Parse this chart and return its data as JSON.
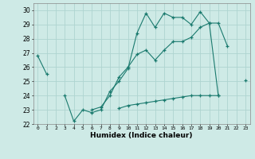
{
  "xlabel": "Humidex (Indice chaleur)",
  "xlim": [
    -0.5,
    23.5
  ],
  "ylim": [
    22,
    30.5
  ],
  "yticks": [
    22,
    23,
    24,
    25,
    26,
    27,
    28,
    29,
    30
  ],
  "xticks": [
    0,
    1,
    2,
    3,
    4,
    5,
    6,
    7,
    8,
    9,
    10,
    11,
    12,
    13,
    14,
    15,
    16,
    17,
    18,
    19,
    20,
    21,
    22,
    23
  ],
  "bg_color": "#ceeae6",
  "grid_color": "#aed4d0",
  "line_color": "#1a7a6e",
  "line1_y": [
    26.8,
    25.5,
    null,
    24.0,
    22.2,
    23.0,
    22.8,
    23.0,
    24.3,
    25.0,
    25.9,
    28.4,
    29.8,
    28.8,
    29.8,
    29.5,
    29.5,
    29.0,
    29.9,
    29.1,
    29.1,
    27.5,
    null,
    25.1
  ],
  "line2_y": [
    null,
    null,
    null,
    null,
    null,
    null,
    23.0,
    23.2,
    24.0,
    25.3,
    26.0,
    26.9,
    27.2,
    26.5,
    27.2,
    27.8,
    27.8,
    28.1,
    28.8,
    29.1,
    24.0,
    null,
    null,
    null
  ],
  "line3_y": [
    null,
    null,
    null,
    null,
    null,
    null,
    null,
    null,
    null,
    23.1,
    23.3,
    23.4,
    23.5,
    23.6,
    23.7,
    23.8,
    23.9,
    24.0,
    24.0,
    24.0,
    24.0,
    null,
    null,
    null
  ]
}
